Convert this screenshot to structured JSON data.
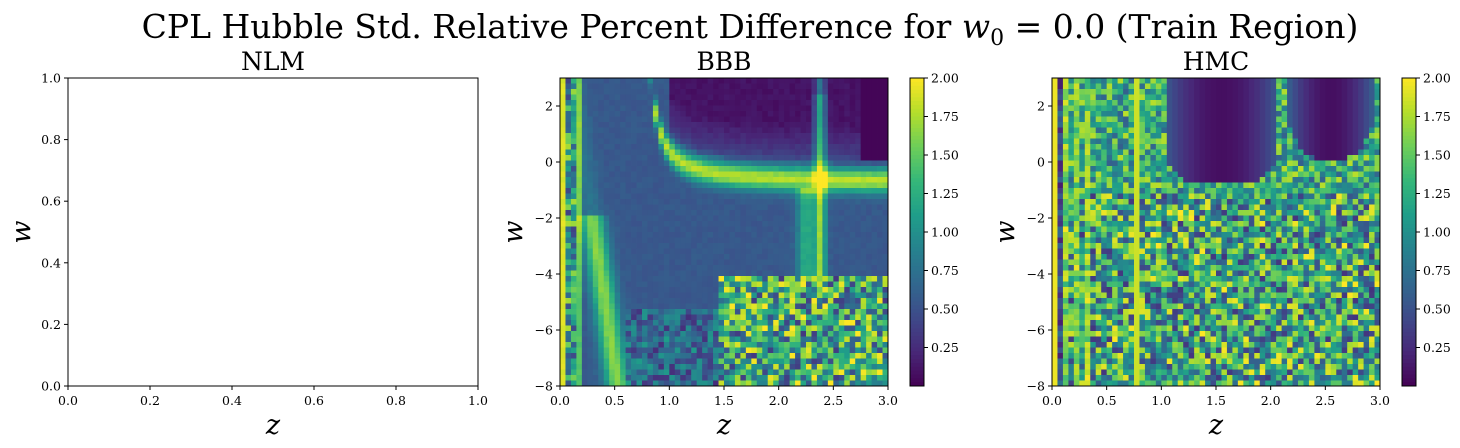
{
  "figure_title": "CPL Hubble Std. Relative Percent Difference for w₀ = 0.0 (Train Region)",
  "chart_data": [
    {
      "type": "line",
      "panel": "NLM",
      "title": "NLM",
      "xlabel": "z",
      "ylabel": "w₁",
      "xlim": [
        0.0,
        1.0
      ],
      "ylim": [
        0.0,
        1.0
      ],
      "xticks": [
        "0.0",
        "0.2",
        "0.4",
        "0.6",
        "0.8",
        "1.0"
      ],
      "yticks": [
        "0.0",
        "0.2",
        "0.4",
        "0.6",
        "0.8",
        "1.0"
      ],
      "series": []
    },
    {
      "type": "heatmap",
      "panel": "BBB",
      "title": "BBB",
      "xlabel": "z",
      "ylabel": "w₁",
      "xlim": [
        0.0,
        3.0
      ],
      "ylim": [
        -8,
        3
      ],
      "xticks": [
        "0.0",
        "0.5",
        "1.0",
        "1.5",
        "2.0",
        "2.5",
        "3.0"
      ],
      "yticks": [
        "2",
        "0",
        "−2",
        "−4",
        "−6",
        "−8"
      ],
      "colorbar": {
        "colormap": "viridis",
        "range": [
          0.0,
          2.0
        ],
        "ticks": [
          "0.25",
          "0.50",
          "0.75",
          "1.00",
          "1.25",
          "1.50",
          "1.75",
          "2.00"
        ]
      },
      "description_features": {
        "grid_cols": 60,
        "grid_rows": 56,
        "bright_ridge_curve": "w1 high at z~0.8, falling to about -0.7 for z>2",
        "vertical_bright_band_z": [
          0.3,
          2.3,
          2.4
        ],
        "noisy_region": "z > 1.5 and w1 < -4"
      }
    },
    {
      "type": "heatmap",
      "panel": "HMC",
      "title": "HMC",
      "xlabel": "z",
      "ylabel": "w₁",
      "xlim": [
        0.0,
        3.0
      ],
      "ylim": [
        -8,
        3
      ],
      "xticks": [
        "0.0",
        "0.5",
        "1.0",
        "1.5",
        "2.0",
        "2.5",
        "3.0"
      ],
      "yticks": [
        "2",
        "0",
        "−2",
        "−4",
        "−6",
        "−8"
      ],
      "colorbar": {
        "colormap": "viridis",
        "range": [
          0.0,
          2.0
        ],
        "ticks": [
          "0.25",
          "0.50",
          "0.75",
          "1.00",
          "1.25",
          "1.50",
          "1.75",
          "2.00"
        ]
      },
      "description_features": {
        "grid_cols": 60,
        "grid_rows": 56,
        "dark_arches_z": [
          [
            1.0,
            2.05
          ],
          [
            2.15,
            2.95
          ]
        ],
        "noisy_region": "w1 < -1 throughout"
      }
    }
  ]
}
